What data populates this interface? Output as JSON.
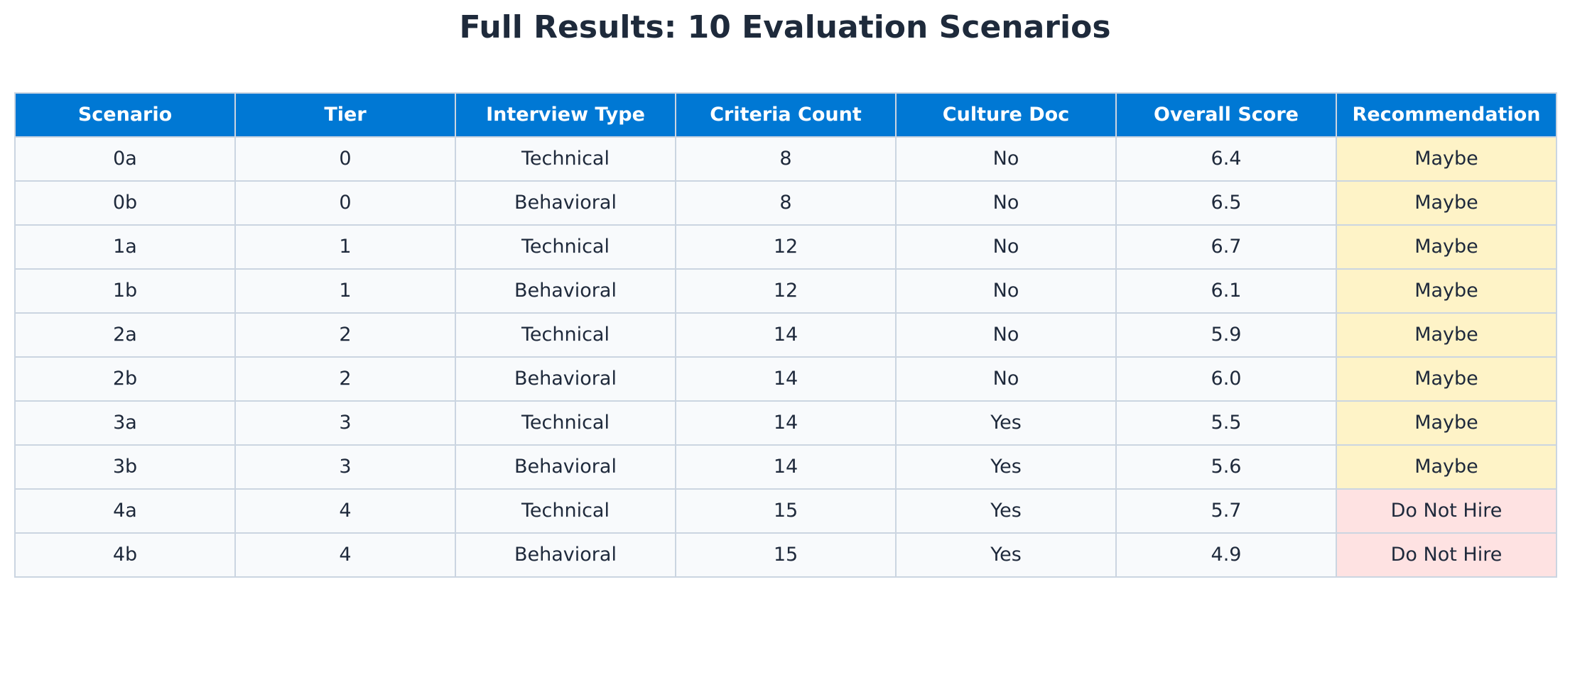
{
  "chart_data": {
    "type": "table",
    "title": "Full Results: 10 Evaluation Scenarios",
    "columns": [
      "Scenario",
      "Tier",
      "Interview Type",
      "Criteria Count",
      "Culture Doc",
      "Overall Score",
      "Recommendation"
    ],
    "rows": [
      [
        "0a",
        "0",
        "Technical",
        "8",
        "No",
        "6.4",
        "Maybe"
      ],
      [
        "0b",
        "0",
        "Behavioral",
        "8",
        "No",
        "6.5",
        "Maybe"
      ],
      [
        "1a",
        "1",
        "Technical",
        "12",
        "No",
        "6.7",
        "Maybe"
      ],
      [
        "1b",
        "1",
        "Behavioral",
        "12",
        "No",
        "6.1",
        "Maybe"
      ],
      [
        "2a",
        "2",
        "Technical",
        "14",
        "No",
        "5.9",
        "Maybe"
      ],
      [
        "2b",
        "2",
        "Behavioral",
        "14",
        "No",
        "6.0",
        "Maybe"
      ],
      [
        "3a",
        "3",
        "Technical",
        "14",
        "Yes",
        "5.5",
        "Maybe"
      ],
      [
        "3b",
        "3",
        "Behavioral",
        "14",
        "Yes",
        "5.6",
        "Maybe"
      ],
      [
        "4a",
        "4",
        "Technical",
        "15",
        "Yes",
        "5.7",
        "Do Not Hire"
      ],
      [
        "4b",
        "4",
        "Behavioral",
        "15",
        "Yes",
        "4.9",
        "Do Not Hire"
      ]
    ],
    "colors": {
      "header_bg": "#0078d4",
      "header_text": "#ffffff",
      "cell_bg": "#f8fafc",
      "border": "#cbd5e1",
      "maybe_bg": "#fef3c7",
      "do_not_hire_bg": "#fee2e2"
    }
  }
}
